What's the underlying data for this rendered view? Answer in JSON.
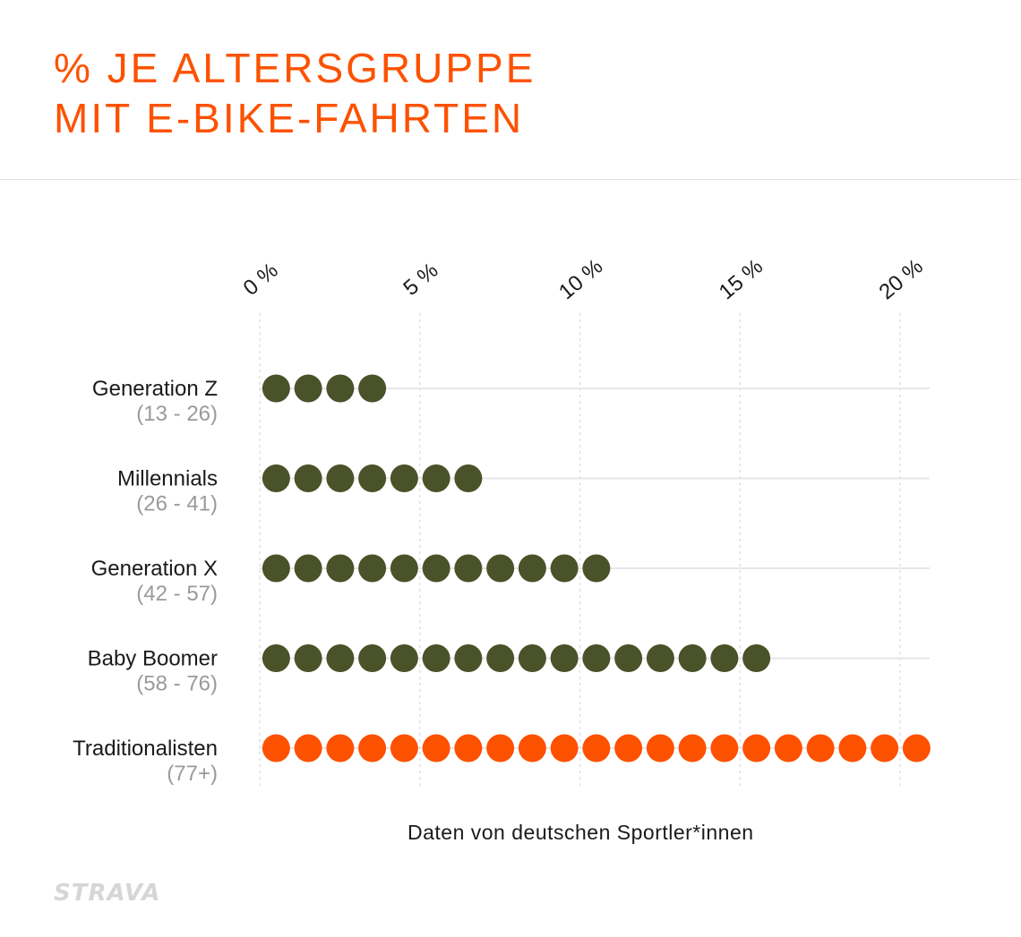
{
  "title": {
    "line1": "% JE ALTERSGRUPPE",
    "line2": "MIT E-BIKE-FAHRTEN"
  },
  "caption": "Daten von deutschen Sportler*innen",
  "logo": "STRAVA",
  "colors": {
    "accent": "#fc5200",
    "series": "#4a5229",
    "highlight": "#fc5200"
  },
  "chart_data": {
    "type": "dot",
    "title": "% JE ALTERSGRUPPE MIT E-BIKE-FAHRTEN",
    "xlim": [
      0,
      20
    ],
    "ticks": [
      0,
      5,
      10,
      15,
      20
    ],
    "tick_labels": [
      "0 %",
      "5 %",
      "10 %",
      "15 %",
      "20 %"
    ],
    "dot_unit_percent": 1,
    "categories": [
      {
        "name": "Generation Z",
        "range": "(13 - 26)",
        "value": 4,
        "highlight": false
      },
      {
        "name": "Millennials",
        "range": "(26 - 41)",
        "value": 7,
        "highlight": false
      },
      {
        "name": "Generation X",
        "range": "(42 - 57)",
        "value": 11,
        "highlight": false
      },
      {
        "name": "Baby Boomer",
        "range": "(58 - 76)",
        "value": 16,
        "highlight": true
      },
      {
        "name": "Traditionalisten",
        "range": "(77+)",
        "value": 21,
        "highlight": true
      }
    ],
    "grid": true
  }
}
